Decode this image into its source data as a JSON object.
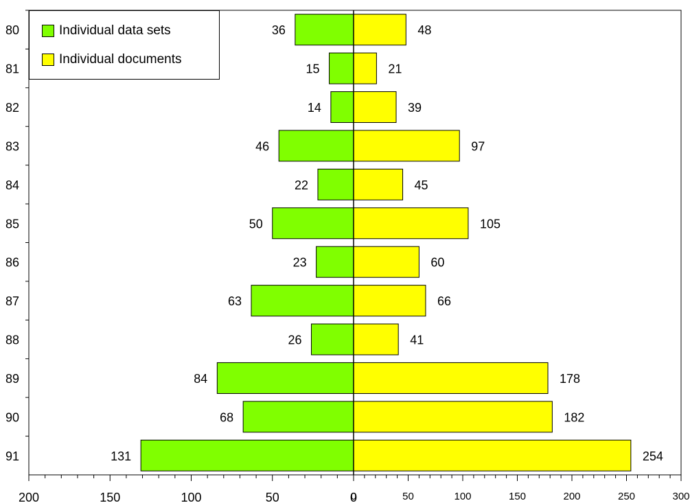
{
  "chart_data": {
    "type": "bar",
    "orientation": "horizontal-diverging",
    "categories": [
      "80",
      "81",
      "82",
      "83",
      "84",
      "85",
      "86",
      "87",
      "88",
      "89",
      "90",
      "91"
    ],
    "series": [
      {
        "name": "Individual data sets",
        "side": "left",
        "color": "#80ff00",
        "values": [
          36,
          15,
          14,
          46,
          22,
          50,
          23,
          63,
          26,
          84,
          68,
          131
        ]
      },
      {
        "name": "Individual documents",
        "side": "right",
        "color": "#ffff00",
        "values": [
          48,
          21,
          39,
          97,
          45,
          105,
          60,
          66,
          41,
          178,
          182,
          254
        ]
      }
    ],
    "left_axis": {
      "range": [
        0,
        200
      ],
      "ticks": [
        "200",
        "150",
        "100",
        "50",
        "0"
      ]
    },
    "right_axis": {
      "range": [
        0,
        300
      ],
      "ticks": [
        "0",
        "50",
        "100",
        "150",
        "200",
        "250",
        "300"
      ]
    },
    "legend": "top-left",
    "grid": false
  }
}
